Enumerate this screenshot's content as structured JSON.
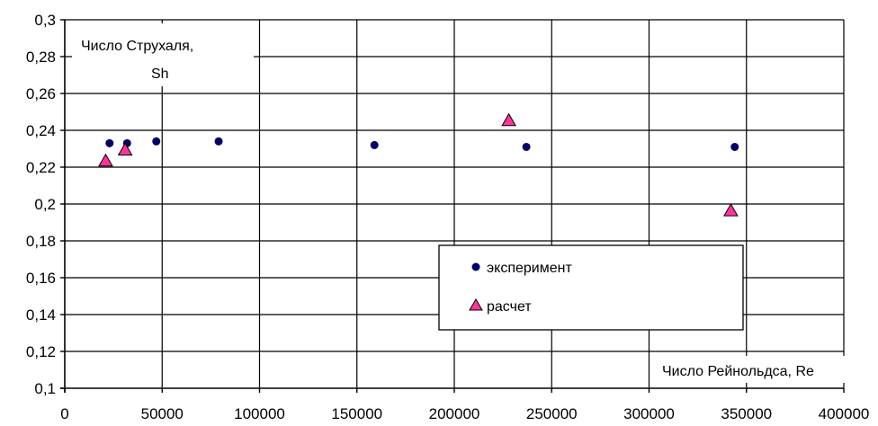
{
  "chart_data": {
    "type": "scatter",
    "title": "",
    "ylabel_line1": "Число Струхаля,",
    "ylabel_line2": "Sh",
    "xlabel": "Число Рейнольдса, Re",
    "xlim": [
      0,
      400000
    ],
    "ylim": [
      0.1,
      0.3
    ],
    "x_ticks": [
      0,
      50000,
      100000,
      150000,
      200000,
      250000,
      300000,
      350000,
      400000
    ],
    "x_tick_labels": [
      "0",
      "50000",
      "100000",
      "150000",
      "200000",
      "250000",
      "300000",
      "350000",
      "400000"
    ],
    "y_ticks": [
      0.1,
      0.12,
      0.14,
      0.16,
      0.18,
      0.2,
      0.22,
      0.24,
      0.26,
      0.28,
      0.3
    ],
    "y_tick_labels": [
      "0,1",
      "0,12",
      "0,14",
      "0,16",
      "0,18",
      "0,2",
      "0,22",
      "0,24",
      "0,26",
      "0,28",
      "0,3"
    ],
    "grid": true,
    "legend_position": "bottom-right",
    "series": [
      {
        "name": "эксперимент",
        "marker": "circle",
        "color": "#000066",
        "points": [
          [
            23000,
            0.233
          ],
          [
            32000,
            0.233
          ],
          [
            47000,
            0.234
          ],
          [
            79000,
            0.234
          ],
          [
            159000,
            0.232
          ],
          [
            237000,
            0.231
          ],
          [
            344000,
            0.231
          ]
        ]
      },
      {
        "name": "расчет",
        "marker": "triangle",
        "color": "#ff3399",
        "points": [
          [
            21000,
            0.223
          ],
          [
            31000,
            0.229
          ],
          [
            228000,
            0.245
          ],
          [
            342000,
            0.196
          ]
        ]
      }
    ]
  }
}
